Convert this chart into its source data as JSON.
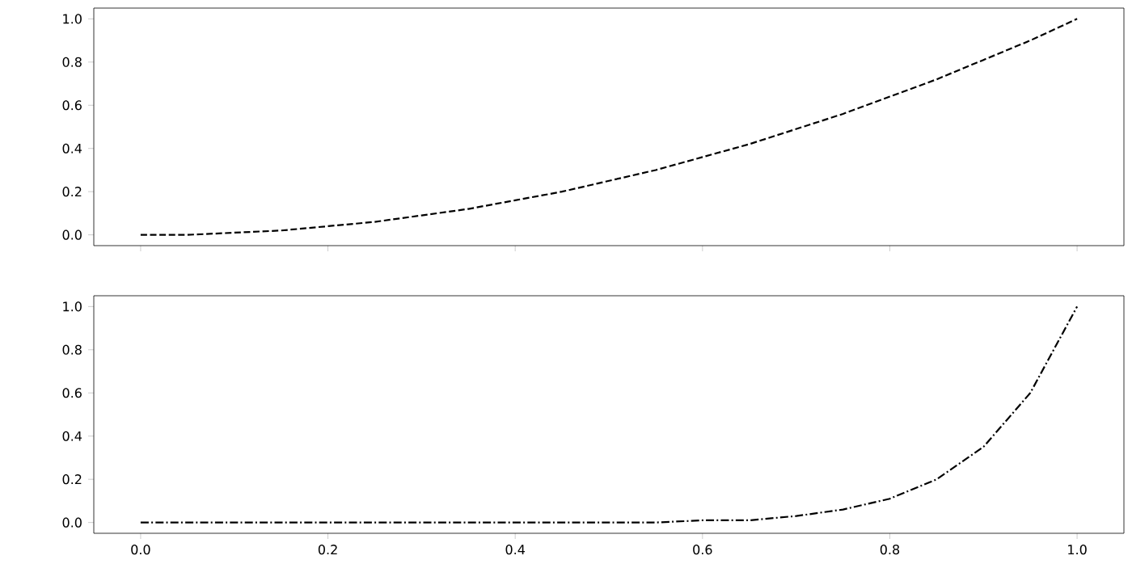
{
  "chart_data": [
    {
      "type": "line",
      "x": [
        0,
        0.05,
        0.1,
        0.15,
        0.2,
        0.25,
        0.3,
        0.35,
        0.4,
        0.45,
        0.5,
        0.55,
        0.6,
        0.65,
        0.7,
        0.75,
        0.8,
        0.85,
        0.9,
        0.95,
        1.0
      ],
      "series": [
        {
          "color": "#000000",
          "line_style": "dashed",
          "values": [
            0,
            0,
            0.01,
            0.02,
            0.04,
            0.06,
            0.09,
            0.12,
            0.16,
            0.2,
            0.25,
            0.3,
            0.36,
            0.42,
            0.49,
            0.56,
            0.64,
            0.72,
            0.81,
            0.9,
            1.0
          ]
        }
      ],
      "xlim": [
        -0.05,
        1.05
      ],
      "ylim": [
        -0.05,
        1.05
      ],
      "tick_labels": "y",
      "xticks": [
        {
          "value": 0,
          "label": null
        },
        {
          "value": 0.2,
          "label": null
        },
        {
          "value": 0.4,
          "label": null
        },
        {
          "value": 0.6,
          "label": null
        },
        {
          "value": 0.8,
          "label": null
        },
        {
          "value": 1.0,
          "label": null
        }
      ],
      "yticks": [
        {
          "value": 0,
          "label": "0.0"
        },
        {
          "value": 0.2,
          "label": "0.2"
        },
        {
          "value": 0.4,
          "label": "0.4"
        },
        {
          "value": 0.6,
          "label": "0.6"
        },
        {
          "value": 0.8,
          "label": "0.8"
        },
        {
          "value": 1.0,
          "label": "1.0"
        }
      ]
    },
    {
      "type": "line",
      "x": [
        0,
        0.05,
        0.1,
        0.15,
        0.2,
        0.25,
        0.3,
        0.35,
        0.4,
        0.45,
        0.5,
        0.55,
        0.6,
        0.65,
        0.7,
        0.75,
        0.8,
        0.85,
        0.9,
        0.95,
        1.0
      ],
      "series": [
        {
          "color": "#000000",
          "line_style": "dashdot",
          "values": [
            0,
            0,
            0,
            0,
            0,
            0,
            0,
            0,
            0,
            0,
            0,
            0,
            0.01,
            0.01,
            0.03,
            0.06,
            0.11,
            0.2,
            0.35,
            0.6,
            1.0
          ]
        }
      ],
      "xlim": [
        -0.05,
        1.05
      ],
      "ylim": [
        -0.05,
        1.05
      ],
      "xticks": [
        {
          "value": 0,
          "label": "0.0"
        },
        {
          "value": 0.2,
          "label": "0.2"
        },
        {
          "value": 0.4,
          "label": "0.4"
        },
        {
          "value": 0.6,
          "label": "0.6"
        },
        {
          "value": 0.8,
          "label": "0.8"
        },
        {
          "value": 1.0,
          "label": "1.0"
        }
      ],
      "yticks": [
        {
          "value": 0,
          "label": "0.0"
        },
        {
          "value": 0.2,
          "label": "0.2"
        },
        {
          "value": 0.4,
          "label": "0.4"
        },
        {
          "value": 0.6,
          "label": "0.6"
        },
        {
          "value": 0.8,
          "label": "0.8"
        },
        {
          "value": 1.0,
          "label": "1.0"
        }
      ]
    }
  ]
}
